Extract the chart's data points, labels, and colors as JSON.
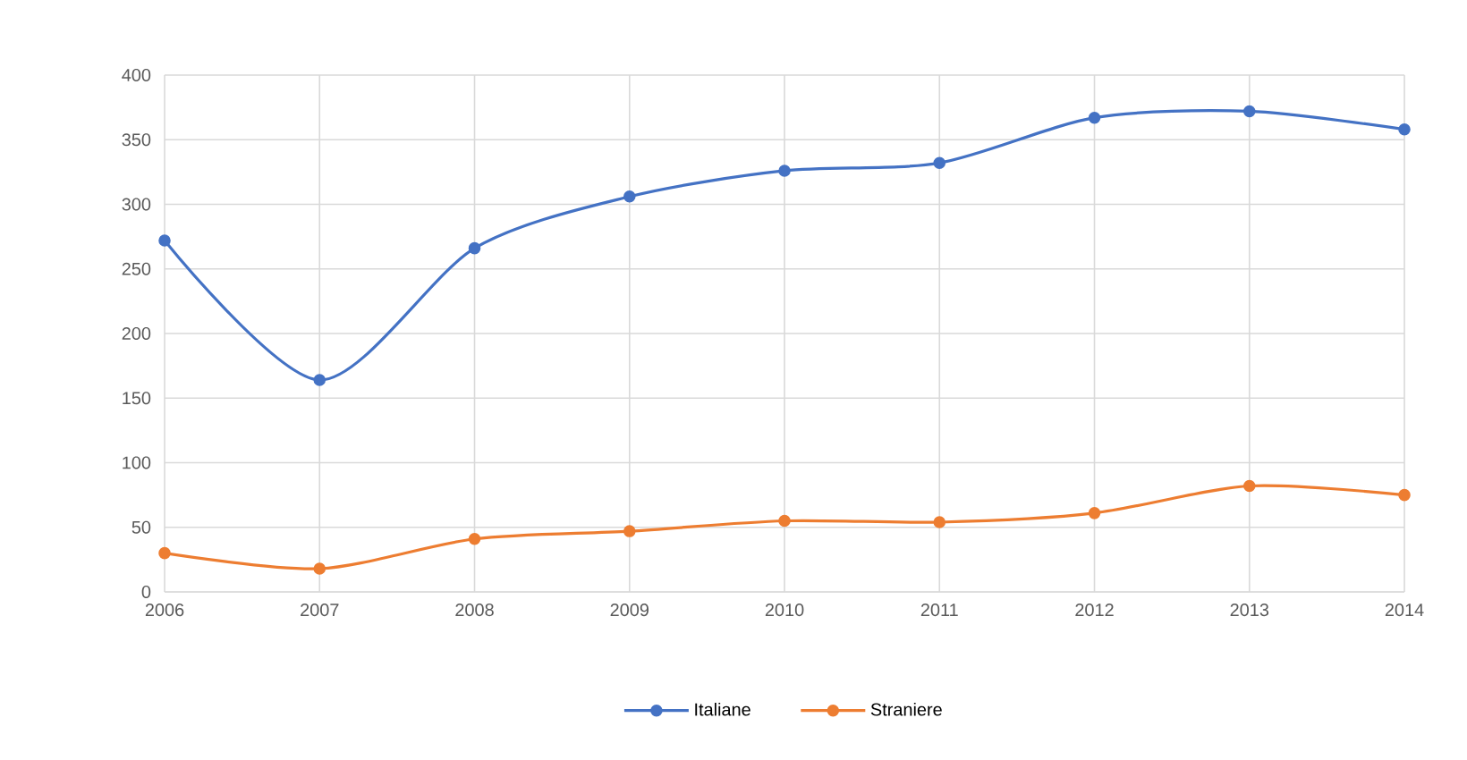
{
  "chart_data": {
    "type": "line",
    "x": [
      2006,
      2007,
      2008,
      2009,
      2010,
      2011,
      2012,
      2013,
      2014
    ],
    "xlim": [
      2006,
      2014
    ],
    "xticks": [
      2006,
      2007,
      2008,
      2009,
      2010,
      2011,
      2012,
      2013,
      2014
    ],
    "ylim": [
      0,
      400
    ],
    "yticks": [
      0,
      50,
      100,
      150,
      200,
      250,
      300,
      350,
      400
    ],
    "grid": true,
    "legend": "bottom",
    "marker": "circle",
    "line_style": "solid",
    "series": [
      {
        "name": "Italiane",
        "color": "#4472c4",
        "values": [
          272,
          164,
          266,
          306,
          326,
          332,
          367,
          372,
          358
        ]
      },
      {
        "name": "Straniere",
        "color": "#ed7d31",
        "values": [
          30,
          18,
          41,
          47,
          55,
          54,
          61,
          82,
          75
        ]
      }
    ]
  }
}
